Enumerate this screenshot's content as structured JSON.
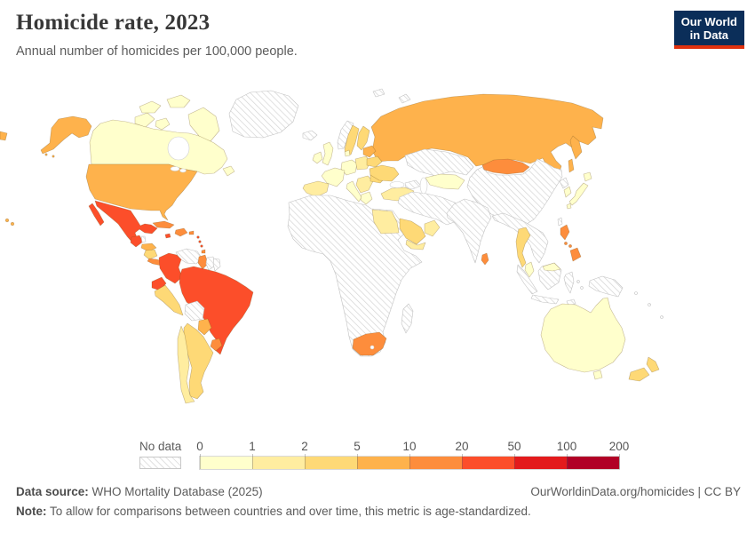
{
  "header": {
    "title": "Homicide rate, 2023",
    "subtitle": "Annual number of homicides per 100,000 people."
  },
  "logo": {
    "line1": "Our World",
    "line2": "in Data",
    "bg": "#0b2e59",
    "accent": "#e0310e"
  },
  "legend": {
    "no_data_label": "No data",
    "ticks": [
      "0",
      "1",
      "2",
      "5",
      "10",
      "20",
      "50",
      "100",
      "200"
    ],
    "colors": [
      "#FFFFCC",
      "#FFEDA0",
      "#FED976",
      "#FEB24C",
      "#FD8D3C",
      "#FC4E2A",
      "#E31A1C",
      "#B10026"
    ]
  },
  "footer": {
    "source_label": "Data source:",
    "source_text": " WHO Mortality Database (2025)",
    "attribution": "OurWorldinData.org/homicides | CC BY",
    "note_label": "Note:",
    "note_text": " To allow for comparisons between countries and over time, this metric is age-standardized."
  },
  "chart_data": {
    "type": "choropleth-map",
    "title": "Homicide rate, 2023",
    "unit": "Annual number of homicides per 100,000 people",
    "year": 2023,
    "scale": {
      "bins": [
        "0-1",
        "1-2",
        "2-5",
        "5-10",
        "10-20",
        "20-50",
        "50-100",
        "100-200"
      ],
      "bucket_colors": {
        "0-1": "#FFFFCC",
        "1-2": "#FFEDA0",
        "2-5": "#FED976",
        "5-10": "#FEB24C",
        "10-20": "#FD8D3C",
        "20-50": "#FC4E2A",
        "50-100": "#E31A1C",
        "100-200": "#B10026"
      },
      "no_data_pattern": "diagonal-hatch"
    },
    "regions": {
      "greenland": "no-data",
      "canada": "0-1",
      "usa": "5-10",
      "mexico": "20-50",
      "belize": "no-data",
      "guatemala": "20-50",
      "honduras": "5-10",
      "nicaragua": "2-5",
      "costa-rica-panama": "10-20",
      "cuba": "10-20",
      "jamaica": "20-50",
      "hispaniola": "10-20",
      "puerto-rico": "10-20",
      "lesser-antilles": "20-50",
      "trinidad-tobago": "10-20",
      "colombia": "20-50",
      "venezuela": "no-data",
      "guyana": "10-20",
      "suriname": "no-data",
      "french-guiana": "no-data",
      "ecuador": "20-50",
      "peru": "2-5",
      "brazil": "20-50",
      "bolivia": "no-data",
      "paraguay": "5-10",
      "uruguay": "10-20",
      "argentina": "2-5",
      "chile": "1-2",
      "iceland": "no-data",
      "uk": "0-1",
      "ireland": "0-1",
      "france": "0-1",
      "spain": "1-2",
      "germany": "0-1",
      "denmark": "0-1",
      "poland": "1-2",
      "italy": "0-1",
      "balkans": "1-2",
      "greece": "0-1",
      "romania": "2-5",
      "belarus": "2-5",
      "baltics": "5-10",
      "ukraine": "2-5",
      "norway": "no-data",
      "sweden": "2-5",
      "finland": "2-5",
      "svalbard": "no-data",
      "novaya-zemlya": "no-data",
      "russia": "5-10",
      "kazakhstan": "no-data",
      "central-asia": "0-1",
      "caucasus": "no-data",
      "turkey": "1-2",
      "middle-east": "no-data",
      "saudi-arabia": "2-5",
      "yemen": "1-2",
      "oman": "1-2",
      "egypt": "1-2",
      "africa": "no-data",
      "south-africa": "10-20",
      "madagascar": "no-data",
      "mongolia": "10-20",
      "china": "no-data",
      "taiwan": "no-data",
      "north-korea": "no-data",
      "south-korea": "0-1",
      "japan": "0-1",
      "india": "no-data",
      "sri-lanka": "10-20",
      "se-asia": "no-data",
      "thailand": "2-5",
      "malaysia": "0-1",
      "indonesia": "no-data",
      "new-guinea": "no-data",
      "philippines": "10-20",
      "pacific-islands": "no-data",
      "australia": "0-1",
      "new-zealand": "2-5"
    }
  }
}
